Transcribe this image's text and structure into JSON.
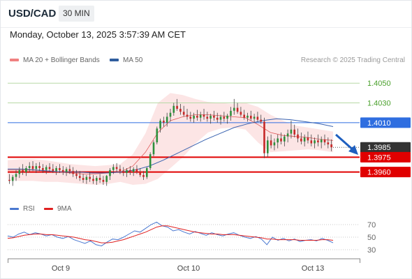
{
  "header": {
    "symbol": "USD/CAD",
    "timeframe": "30 MIN",
    "datetime": "Monday, October 13, 2025 3:57:39 AM CET",
    "credit": "Research © 2025 Trading Central"
  },
  "legend": {
    "ma20": "MA 20 + Bollinger Bands",
    "ma50": "MA 50",
    "ma20_color": "#f08080",
    "ma50_color": "#2f5d9e"
  },
  "rsi_legend": {
    "rsi": "RSI",
    "ma9": "9MA",
    "rsi_color": "#4a78d0",
    "ma9_color": "#e02020"
  },
  "chart_data": {
    "type": "candlestick",
    "price_axis": {
      "min": 1.3935,
      "max": 1.4065
    },
    "levels": [
      {
        "label": "1.4050",
        "value": 1.405,
        "kind": "resistance",
        "color": "#4aa02c"
      },
      {
        "label": "1.4030",
        "value": 1.403,
        "kind": "resistance",
        "color": "#4aa02c"
      },
      {
        "label": "1.4010",
        "value": 1.401,
        "kind": "pivot",
        "color": "#2f6ee0"
      },
      {
        "label": "1.3985",
        "value": 1.3985,
        "kind": "last",
        "color": "#333333"
      },
      {
        "label": "1.3975",
        "value": 1.3975,
        "kind": "support",
        "color": "#e00000"
      },
      {
        "label": "1.3960",
        "value": 1.396,
        "kind": "support",
        "color": "#e00000"
      }
    ],
    "x_labels": [
      "Oct 9",
      "Oct 10",
      "Oct 13"
    ],
    "candles": [
      [
        1.3952,
        1.3958,
        1.3948,
        1.3951
      ],
      [
        1.3951,
        1.3957,
        1.3946,
        1.3955
      ],
      [
        1.3955,
        1.3962,
        1.3951,
        1.3958
      ],
      [
        1.3958,
        1.3965,
        1.3954,
        1.3962
      ],
      [
        1.3962,
        1.3968,
        1.3957,
        1.396
      ],
      [
        1.396,
        1.3966,
        1.3956,
        1.3964
      ],
      [
        1.3964,
        1.397,
        1.396,
        1.3966
      ],
      [
        1.3966,
        1.3971,
        1.3961,
        1.3963
      ],
      [
        1.3963,
        1.3969,
        1.3959,
        1.3966
      ],
      [
        1.3966,
        1.397,
        1.3961,
        1.3964
      ],
      [
        1.3964,
        1.3968,
        1.3959,
        1.3962
      ],
      [
        1.3962,
        1.3967,
        1.3958,
        1.3965
      ],
      [
        1.3965,
        1.3969,
        1.396,
        1.3963
      ],
      [
        1.3963,
        1.3968,
        1.3959,
        1.3961
      ],
      [
        1.3961,
        1.3966,
        1.3957,
        1.3964
      ],
      [
        1.3964,
        1.3968,
        1.3959,
        1.3962
      ],
      [
        1.3962,
        1.3966,
        1.3957,
        1.396
      ],
      [
        1.396,
        1.3965,
        1.3956,
        1.3963
      ],
      [
        1.3963,
        1.3967,
        1.3958,
        1.3961
      ],
      [
        1.3961,
        1.3965,
        1.3955,
        1.3958
      ],
      [
        1.3958,
        1.3962,
        1.3953,
        1.3956
      ],
      [
        1.3956,
        1.3961,
        1.3951,
        1.3954
      ],
      [
        1.3954,
        1.3958,
        1.3949,
        1.3952
      ],
      [
        1.3952,
        1.3957,
        1.3948,
        1.3955
      ],
      [
        1.3955,
        1.396,
        1.395,
        1.3953
      ],
      [
        1.3953,
        1.3957,
        1.3948,
        1.3951
      ],
      [
        1.3951,
        1.3956,
        1.3947,
        1.3954
      ],
      [
        1.3954,
        1.3958,
        1.3949,
        1.3952
      ],
      [
        1.3952,
        1.3956,
        1.3947,
        1.395
      ],
      [
        1.395,
        1.3957,
        1.3946,
        1.3956
      ],
      [
        1.3956,
        1.3964,
        1.3952,
        1.3962
      ],
      [
        1.3962,
        1.3968,
        1.3958,
        1.3965
      ],
      [
        1.3965,
        1.3969,
        1.396,
        1.3963
      ],
      [
        1.3963,
        1.3967,
        1.3958,
        1.3961
      ],
      [
        1.3961,
        1.3965,
        1.3956,
        1.3959
      ],
      [
        1.3959,
        1.3964,
        1.3955,
        1.3962
      ],
      [
        1.3962,
        1.3966,
        1.3957,
        1.396
      ],
      [
        1.396,
        1.3965,
        1.3956,
        1.3963
      ],
      [
        1.3963,
        1.3967,
        1.3958,
        1.396
      ],
      [
        1.396,
        1.3964,
        1.3955,
        1.3957
      ],
      [
        1.3957,
        1.3961,
        1.3952,
        1.3955
      ],
      [
        1.3955,
        1.3965,
        1.3953,
        1.3964
      ],
      [
        1.3964,
        1.398,
        1.3962,
        1.3978
      ],
      [
        1.3978,
        1.3992,
        1.3976,
        1.399
      ],
      [
        1.399,
        1.4006,
        1.3988,
        1.4004
      ],
      [
        1.4004,
        1.4014,
        1.4,
        1.4012
      ],
      [
        1.4012,
        1.4016,
        1.4006,
        1.401
      ],
      [
        1.401,
        1.402,
        1.4006,
        1.4016
      ],
      [
        1.4016,
        1.4024,
        1.4011,
        1.402
      ],
      [
        1.402,
        1.403,
        1.4017,
        1.4027
      ],
      [
        1.4027,
        1.4034,
        1.4022,
        1.4024
      ],
      [
        1.4024,
        1.4029,
        1.4018,
        1.4021
      ],
      [
        1.4021,
        1.4027,
        1.4016,
        1.4018
      ],
      [
        1.4018,
        1.4024,
        1.4013,
        1.4016
      ],
      [
        1.4016,
        1.4021,
        1.4011,
        1.4014
      ],
      [
        1.4014,
        1.402,
        1.401,
        1.4017
      ],
      [
        1.4017,
        1.4023,
        1.4012,
        1.4015
      ],
      [
        1.4015,
        1.4021,
        1.4011,
        1.4018
      ],
      [
        1.4018,
        1.4024,
        1.4013,
        1.4016
      ],
      [
        1.4016,
        1.4021,
        1.4011,
        1.4014
      ],
      [
        1.4014,
        1.4019,
        1.4009,
        1.4017
      ],
      [
        1.4017,
        1.4022,
        1.4012,
        1.4015
      ],
      [
        1.4015,
        1.402,
        1.401,
        1.4013
      ],
      [
        1.4013,
        1.4018,
        1.4008,
        1.4016
      ],
      [
        1.4016,
        1.4021,
        1.4011,
        1.4014
      ],
      [
        1.4014,
        1.4019,
        1.4009,
        1.4017
      ],
      [
        1.4017,
        1.4026,
        1.4012,
        1.4022
      ],
      [
        1.4022,
        1.4034,
        1.4018,
        1.4025
      ],
      [
        1.4025,
        1.403,
        1.4019,
        1.4021
      ],
      [
        1.4021,
        1.4026,
        1.4016,
        1.4018
      ],
      [
        1.4018,
        1.4023,
        1.4013,
        1.4015
      ],
      [
        1.4015,
        1.402,
        1.4011,
        1.4017
      ],
      [
        1.4017,
        1.4022,
        1.4012,
        1.4014
      ],
      [
        1.4014,
        1.4019,
        1.401,
        1.4016
      ],
      [
        1.4016,
        1.4021,
        1.4011,
        1.4013
      ],
      [
        1.4013,
        1.4018,
        1.4009,
        1.4011
      ],
      [
        1.4011,
        1.4015,
        1.3974,
        1.3979
      ],
      [
        1.3979,
        1.3996,
        1.3975,
        1.3992
      ],
      [
        1.3992,
        1.3998,
        1.3984,
        1.3987
      ],
      [
        1.3987,
        1.3994,
        1.3982,
        1.399
      ],
      [
        1.399,
        1.3998,
        1.3984,
        1.3994
      ],
      [
        1.3994,
        1.4,
        1.3988,
        1.3991
      ],
      [
        1.3991,
        1.3998,
        1.3986,
        1.3996
      ],
      [
        1.3996,
        1.4003,
        1.399,
        1.3999
      ],
      [
        1.3999,
        1.4012,
        1.3994,
        1.4003
      ],
      [
        1.4003,
        1.4008,
        1.3995,
        1.3998
      ],
      [
        1.3998,
        1.4004,
        1.399,
        1.3994
      ],
      [
        1.3994,
        1.4,
        1.3988,
        1.3991
      ],
      [
        1.3991,
        1.3998,
        1.3986,
        1.3995
      ],
      [
        1.3995,
        1.4001,
        1.3989,
        1.3992
      ],
      [
        1.3992,
        1.3998,
        1.3986,
        1.3989
      ],
      [
        1.3989,
        1.3995,
        1.3984,
        1.3992
      ],
      [
        1.3992,
        1.3998,
        1.3986,
        1.399
      ],
      [
        1.399,
        1.3996,
        1.3984,
        1.3993
      ],
      [
        1.3993,
        1.3998,
        1.3987,
        1.399
      ],
      [
        1.399,
        1.3995,
        1.3984,
        1.3988
      ],
      [
        1.3988,
        1.3993,
        1.3981,
        1.3985
      ]
    ],
    "ma20": [
      1.3962,
      1.3962,
      1.3962,
      1.3961,
      1.396,
      1.3959,
      1.3958,
      1.3958,
      1.3959,
      1.396,
      1.3966,
      1.398,
      1.4,
      1.4012,
      1.4016,
      1.4018,
      1.4018,
      1.4017,
      1.4016,
      1.4015,
      1.4008,
      1.4,
      1.3997,
      1.3996,
      1.3995,
      1.3993,
      1.3992
    ],
    "ma50": [
      1.3963,
      1.3963,
      1.3962,
      1.3961,
      1.396,
      1.396,
      1.3959,
      1.3959,
      1.396,
      1.3962,
      1.3966,
      1.3972,
      1.3979,
      1.3986,
      1.3993,
      1.3999,
      1.4005,
      1.4009,
      1.4012,
      1.4014,
      1.4013,
      1.4011,
      1.4009,
      1.4006
    ],
    "bb_upper": [
      1.3972,
      1.3973,
      1.3973,
      1.3972,
      1.397,
      1.3968,
      1.3967,
      1.3966,
      1.3967,
      1.3968,
      1.3978,
      1.3999,
      1.403,
      1.404,
      1.4038,
      1.4034,
      1.4031,
      1.403,
      1.4029,
      1.403,
      1.4026,
      1.4018,
      1.4012,
      1.4007,
      1.4005,
      1.4003,
      1.4001
    ],
    "bb_lower": [
      1.3952,
      1.3951,
      1.3951,
      1.395,
      1.395,
      1.3949,
      1.3948,
      1.3947,
      1.3948,
      1.395,
      1.3947,
      1.3948,
      1.3953,
      1.3964,
      1.3975,
      1.3989,
      1.4,
      1.4004,
      1.4005,
      1.4003,
      1.399,
      1.398,
      1.3981,
      1.3982,
      1.3983,
      1.3982,
      1.398
    ],
    "rsi": {
      "axis_ticks": [
        "70",
        "50",
        "30"
      ],
      "range": [
        20,
        80
      ],
      "rsi": [
        52,
        50,
        55,
        58,
        54,
        57,
        55,
        52,
        54,
        50,
        48,
        51,
        46,
        43,
        40,
        44,
        38,
        36,
        42,
        47,
        46,
        50,
        55,
        60,
        58,
        64,
        70,
        74,
        68,
        66,
        60,
        62,
        58,
        55,
        59,
        56,
        53,
        57,
        54,
        52,
        55,
        57,
        53,
        50,
        48,
        51,
        47,
        38,
        50,
        45,
        48,
        44,
        47,
        43,
        45,
        46,
        44,
        48,
        45,
        41
      ],
      "ma9": [
        48,
        49,
        51,
        53,
        54,
        55,
        55,
        54,
        54,
        53,
        52,
        51,
        50,
        48,
        46,
        45,
        43,
        41,
        41,
        42,
        44,
        46,
        49,
        52,
        55,
        58,
        62,
        66,
        68,
        68,
        66,
        64,
        62,
        60,
        58,
        57,
        56,
        55,
        55,
        54,
        54,
        54,
        53,
        52,
        51,
        50,
        49,
        47,
        47,
        46,
        46,
        46,
        46,
        45,
        45,
        45,
        45,
        46,
        46,
        45
      ]
    }
  }
}
